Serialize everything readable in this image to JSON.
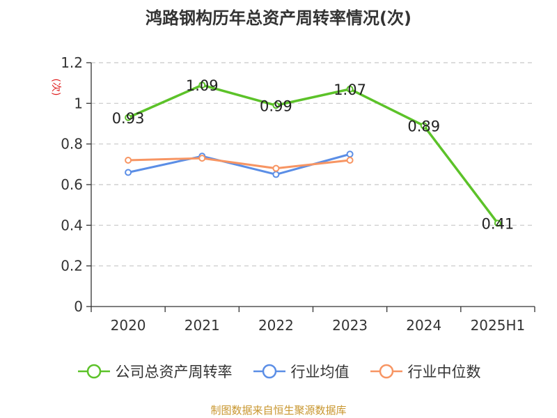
{
  "title": "鸿路钢构历年总资产周转率情况(次)",
  "source": "制图数据来自恒生聚源数据库",
  "chart_data": {
    "type": "line",
    "title": "鸿路钢构历年总资产周转率情况(次)",
    "ylabel": "(次)",
    "categories": [
      "2020",
      "2021",
      "2022",
      "2023",
      "2024",
      "2025H1"
    ],
    "ylim": [
      0,
      1.2
    ],
    "yticks": [
      "0",
      "0.2",
      "0.4",
      "0.6",
      "0.8",
      "1",
      "1.2"
    ],
    "grid": true,
    "legend_position": "bottom",
    "series": [
      {
        "name": "公司总资产周转率",
        "color": "#5cc229",
        "values": [
          0.93,
          1.09,
          0.99,
          1.07,
          0.89,
          0.41
        ],
        "labels": [
          "0.93",
          "1.09",
          "0.99",
          "1.07",
          "0.89",
          "0.41"
        ]
      },
      {
        "name": "行业均值",
        "color": "#5b8ee6",
        "values": [
          0.66,
          0.74,
          0.65,
          0.75,
          null,
          null
        ]
      },
      {
        "name": "行业中位数",
        "color": "#f79563",
        "values": [
          0.72,
          0.73,
          0.68,
          0.72,
          null,
          null
        ]
      }
    ]
  }
}
